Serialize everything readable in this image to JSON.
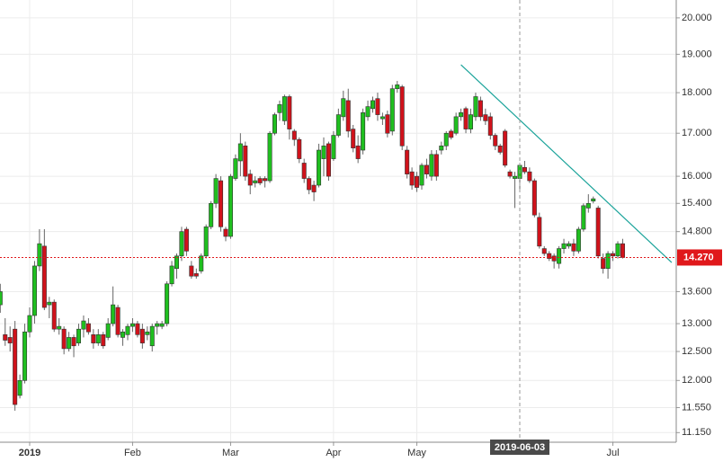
{
  "chart_data": {
    "type": "candlestick",
    "log_scale": true,
    "grid": true,
    "up_color": "#1fbf1f",
    "down_color": "#d0121b",
    "categories": [
      null,
      null,
      null,
      null,
      null,
      null,
      "2019",
      null,
      null,
      null,
      null,
      null,
      null,
      null,
      null,
      null,
      null,
      null,
      null,
      null,
      null,
      null,
      null,
      null,
      null,
      null,
      null,
      "Feb",
      null,
      null,
      null,
      null,
      null,
      null,
      null,
      null,
      null,
      null,
      null,
      null,
      null,
      null,
      null,
      null,
      null,
      null,
      null,
      "Mar",
      null,
      null,
      null,
      null,
      null,
      null,
      null,
      null,
      null,
      null,
      null,
      null,
      null,
      null,
      null,
      null,
      null,
      null,
      null,
      null,
      "Apr",
      null,
      null,
      null,
      null,
      null,
      null,
      null,
      null,
      null,
      null,
      null,
      null,
      null,
      null,
      null,
      null,
      "May",
      null,
      null,
      null,
      null,
      null,
      null,
      null,
      null,
      null,
      null,
      null,
      null,
      null,
      null,
      null,
      null,
      null,
      null,
      null,
      null,
      "2019-06-03",
      null,
      null,
      null,
      null,
      null,
      null,
      null,
      null,
      null,
      null,
      null,
      null,
      null,
      null,
      null,
      null,
      null,
      null,
      "Jul",
      null,
      null
    ],
    "open": [
      13.35,
      12.8,
      12.75,
      12.9,
      11.75,
      12.0,
      12.85,
      13.15,
      14.1,
      14.5,
      13.35,
      13.4,
      12.9,
      12.9,
      12.55,
      12.75,
      12.65,
      12.9,
      13.0,
      12.8,
      12.65,
      12.8,
      12.75,
      13.0,
      13.3,
      12.75,
      12.8,
      12.95,
      13.0,
      12.9,
      12.8,
      12.6,
      12.95,
      12.95,
      13.0,
      13.75,
      14.05,
      14.3,
      14.85,
      14.1,
      13.95,
      14.0,
      14.3,
      14.9,
      15.4,
      15.9,
      14.85,
      14.7,
      15.95,
      16.35,
      16.7,
      16.05,
      15.85,
      15.95,
      15.95,
      15.9,
      17.0,
      17.5,
      17.3,
      17.9,
      17.05,
      16.85,
      16.3,
      15.95,
      15.8,
      15.8,
      16.4,
      16.75,
      16.4,
      16.95,
      17.4,
      17.8,
      17.1,
      16.7,
      16.6,
      17.4,
      17.6,
      17.85,
      17.35,
      17.45,
      17.05,
      18.1,
      18.15,
      16.6,
      16.1,
      16.0,
      15.8,
      16.25,
      16.0,
      16.5,
      16.6,
      16.7,
      17.05,
      17.0,
      17.4,
      17.6,
      17.1,
      17.4,
      17.8,
      17.45,
      17.4,
      16.95,
      16.7,
      17.05,
      16.1,
      15.95,
      15.95,
      16.2,
      16.1,
      15.9,
      15.1,
      14.45,
      14.35,
      14.3,
      14.15,
      14.45,
      14.5,
      14.55,
      14.4,
      14.85,
      15.3,
      15.45,
      15.3,
      14.25,
      14.05,
      14.35,
      14.3,
      14.55
    ],
    "high": [
      13.75,
      13.1,
      12.95,
      13.05,
      12.1,
      13.0,
      13.3,
      14.2,
      14.85,
      14.85,
      13.5,
      13.45,
      13.1,
      12.95,
      12.85,
      12.8,
      13.0,
      13.15,
      13.1,
      12.9,
      12.9,
      12.85,
      13.1,
      13.7,
      13.35,
      12.9,
      13.0,
      13.1,
      13.05,
      13.0,
      12.95,
      13.0,
      13.05,
      13.05,
      13.8,
      14.2,
      14.35,
      14.9,
      14.9,
      14.2,
      14.05,
      14.35,
      14.95,
      15.45,
      16.05,
      16.0,
      14.9,
      16.05,
      16.5,
      17.0,
      16.8,
      16.15,
      16.0,
      16.0,
      16.0,
      17.05,
      17.5,
      17.8,
      17.95,
      17.95,
      17.1,
      16.9,
      16.4,
      16.0,
      15.9,
      16.75,
      16.9,
      16.8,
      17.05,
      17.6,
      18.05,
      18.1,
      17.2,
      16.95,
      17.6,
      17.8,
      17.9,
      18.0,
      17.5,
      17.55,
      18.2,
      18.3,
      18.2,
      16.7,
      16.2,
      16.1,
      16.3,
      16.4,
      16.6,
      16.6,
      16.8,
      17.05,
      17.1,
      17.5,
      17.6,
      17.65,
      17.6,
      18.0,
      17.9,
      17.6,
      17.5,
      17.0,
      16.75,
      17.1,
      16.15,
      16.1,
      16.3,
      16.35,
      16.2,
      15.95,
      15.2,
      14.5,
      14.4,
      14.35,
      14.5,
      14.65,
      14.6,
      14.65,
      14.9,
      15.4,
      15.6,
      15.55,
      15.35,
      14.35,
      14.4,
      14.4,
      14.6,
      14.65
    ],
    "low": [
      13.2,
      12.6,
      12.5,
      11.5,
      11.7,
      11.95,
      12.75,
      13.0,
      14.0,
      13.25,
      13.1,
      12.85,
      12.8,
      12.45,
      12.5,
      12.4,
      12.6,
      12.75,
      12.8,
      12.55,
      12.6,
      12.55,
      12.7,
      12.95,
      12.75,
      12.6,
      12.7,
      12.85,
      12.75,
      12.55,
      12.7,
      12.5,
      12.8,
      12.9,
      12.95,
      13.7,
      13.85,
      14.2,
      14.3,
      13.85,
      13.85,
      13.95,
      14.25,
      14.85,
      15.3,
      14.8,
      14.6,
      14.65,
      15.9,
      16.0,
      15.9,
      15.6,
      15.75,
      15.8,
      15.75,
      15.85,
      16.95,
      17.3,
      17.2,
      16.85,
      16.7,
      16.3,
      15.85,
      15.6,
      15.45,
      15.75,
      16.0,
      15.9,
      16.35,
      16.9,
      17.3,
      16.9,
      16.55,
      16.3,
      16.5,
      17.3,
      17.5,
      17.3,
      17.2,
      16.9,
      16.95,
      18.0,
      16.6,
      15.95,
      15.7,
      15.65,
      15.7,
      15.95,
      15.9,
      15.9,
      16.5,
      16.6,
      16.85,
      16.95,
      17.3,
      17.0,
      17.0,
      17.3,
      17.3,
      17.2,
      16.85,
      16.6,
      16.5,
      16.2,
      15.95,
      15.3,
      15.7,
      16.05,
      15.85,
      15.1,
      14.45,
      14.3,
      14.2,
      14.05,
      14.05,
      14.35,
      14.45,
      14.3,
      14.35,
      14.8,
      15.2,
      15.4,
      14.25,
      13.95,
      13.85,
      14.2,
      14.25,
      14.25
    ],
    "close": [
      13.6,
      12.7,
      12.65,
      11.6,
      12.0,
      12.85,
      13.15,
      14.1,
      14.55,
      13.3,
      13.4,
      12.9,
      12.95,
      12.55,
      12.75,
      12.6,
      12.9,
      13.05,
      12.85,
      12.65,
      12.8,
      12.6,
      13.0,
      13.35,
      12.8,
      12.85,
      12.95,
      13.0,
      12.8,
      12.65,
      12.85,
      12.95,
      13.0,
      13.0,
      13.75,
      14.1,
      14.3,
      14.8,
      14.4,
      13.9,
      13.9,
      14.3,
      14.9,
      15.4,
      15.95,
      14.9,
      14.7,
      16.0,
      16.4,
      16.75,
      16.0,
      15.8,
      15.9,
      15.85,
      15.9,
      17.0,
      17.45,
      17.7,
      17.9,
      17.1,
      16.85,
      16.4,
      15.95,
      15.7,
      15.65,
      16.6,
      16.7,
      16.0,
      16.95,
      17.45,
      17.85,
      17.05,
      16.65,
      16.4,
      17.5,
      17.65,
      17.8,
      17.45,
      17.4,
      17.0,
      18.1,
      18.2,
      16.7,
      16.05,
      15.8,
      15.75,
      16.25,
      16.05,
      16.5,
      16.0,
      16.7,
      17.0,
      16.9,
      17.4,
      17.5,
      17.1,
      17.45,
      17.9,
      17.4,
      17.3,
      16.95,
      16.7,
      16.55,
      16.25,
      16.0,
      16.0,
      16.25,
      16.1,
      15.9,
      15.15,
      14.5,
      14.35,
      14.25,
      14.2,
      14.45,
      14.55,
      14.55,
      14.4,
      14.85,
      15.35,
      15.4,
      15.5,
      14.3,
      14.05,
      14.35,
      14.3,
      14.55,
      14.27
    ],
    "ylim": [
      11.0,
      20.51
    ],
    "yticks": [
      {
        "value": 11.15,
        "label": "11.150"
      },
      {
        "value": 11.55,
        "label": "11.550"
      },
      {
        "value": 12,
        "label": "12.000"
      },
      {
        "value": 12.5,
        "label": "12.500"
      },
      {
        "value": 13,
        "label": "13.000"
      },
      {
        "value": 13.6,
        "label": "13.600"
      },
      {
        "value": 14.8,
        "label": "14.800"
      },
      {
        "value": 15.4,
        "label": "15.400"
      },
      {
        "value": 16,
        "label": "16.000"
      },
      {
        "value": 17,
        "label": "17.000"
      },
      {
        "value": 18,
        "label": "18.000"
      },
      {
        "value": 19,
        "label": "19.000"
      },
      {
        "value": 20,
        "label": "20.000"
      }
    ],
    "last_price": {
      "value": 14.27,
      "label": "14.270",
      "color": "#e0181b"
    },
    "crosshair_x": "2019-06-03",
    "trendline": {
      "x": [
        94,
        137
      ],
      "y": [
        18.72,
        14.17
      ],
      "color": "#1aa39a"
    }
  }
}
